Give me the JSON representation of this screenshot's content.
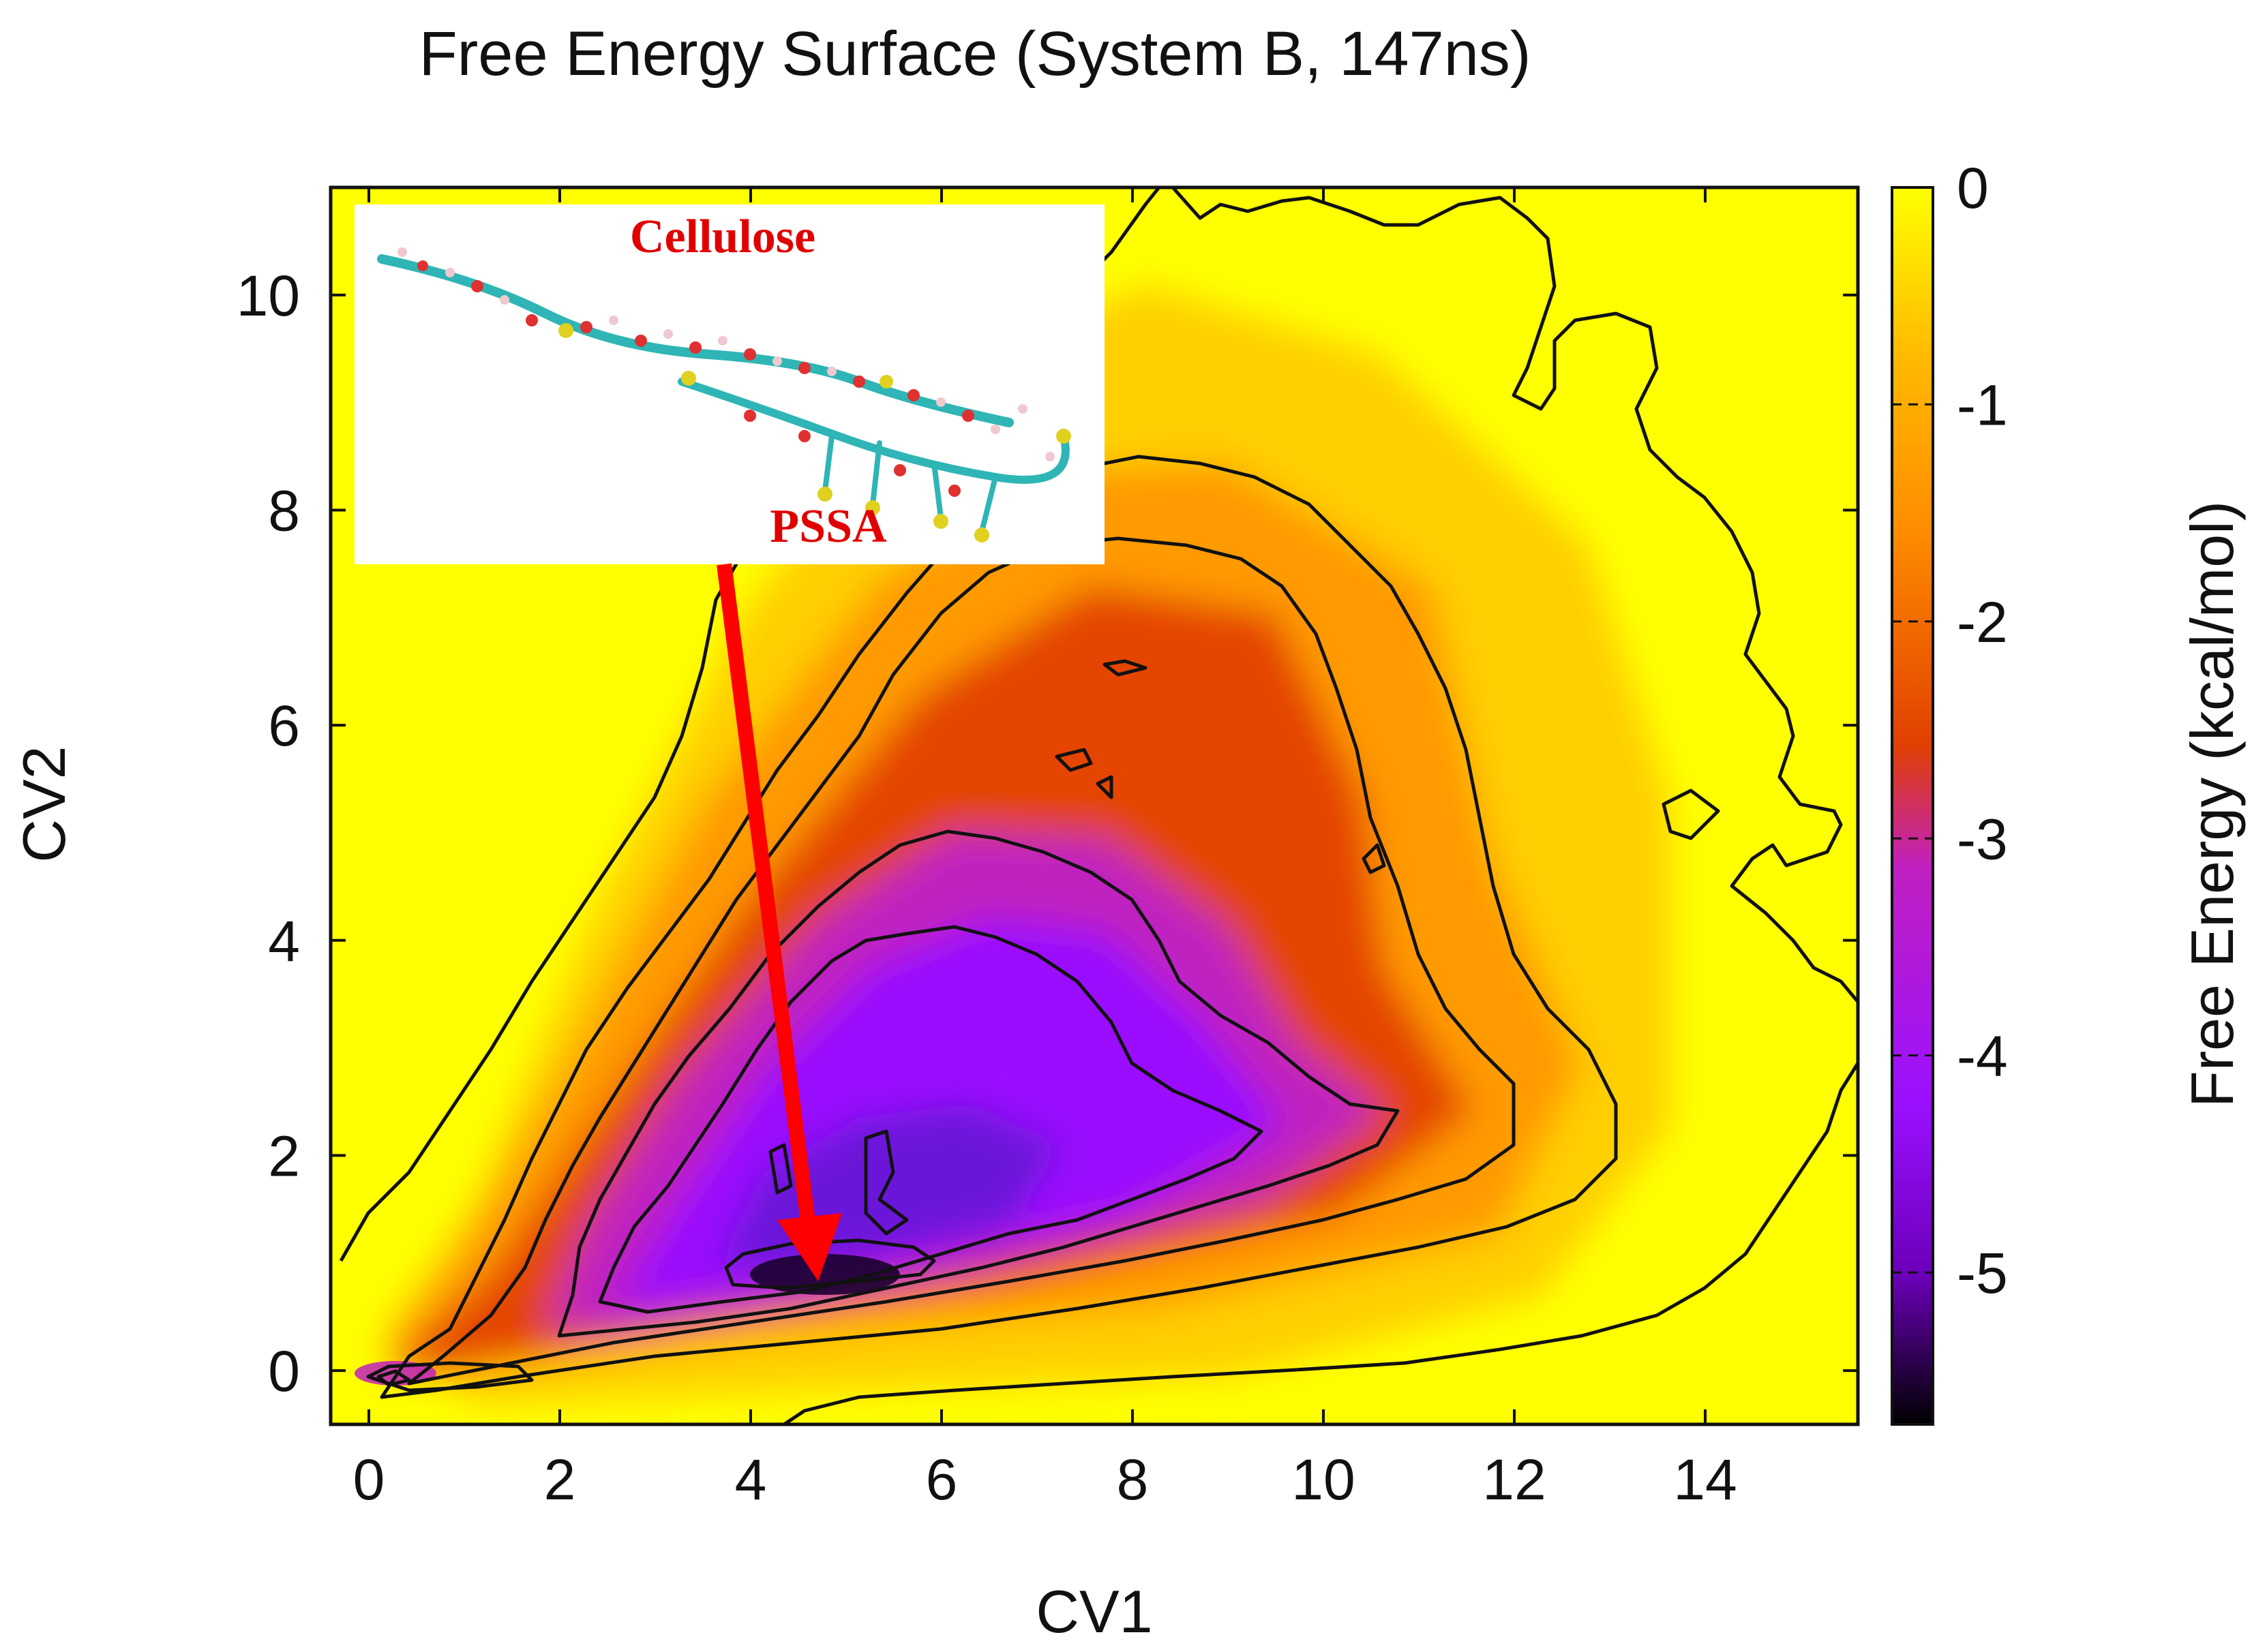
{
  "chart_data": {
    "type": "heatmap",
    "title": "Free Energy Surface (System B, 147ns)",
    "xlabel": "CV1",
    "ylabel": "CV2",
    "xlim": [
      -0.4,
      15.6
    ],
    "ylim": [
      -0.5,
      11.0
    ],
    "x_ticks": [
      0,
      2,
      4,
      6,
      8,
      10,
      12,
      14
    ],
    "y_ticks": [
      0,
      2,
      4,
      6,
      8,
      10
    ],
    "colorbar": {
      "label": "Free Energy (kcal/mol)",
      "range": [
        -5.7,
        0
      ],
      "ticks": [
        0,
        -1,
        -2,
        -3,
        -4,
        -5
      ],
      "colors": [
        "#000000",
        "#6b00b8",
        "#9a10ff",
        "#c020c0",
        "#e04000",
        "#ff8c00",
        "#ffb800",
        "#ffff00"
      ]
    },
    "contour_levels": [
      -5,
      -4,
      -3,
      -2,
      -1
    ],
    "minimum": {
      "x": 4.5,
      "y": 0.9,
      "value": -5.6
    },
    "annotations": {
      "inset_top_label": "Cellulose",
      "inset_bottom_label": "PSSA"
    },
    "arrow": {
      "from": [
        3.7,
        8.2
      ],
      "to": [
        4.7,
        0.95
      ],
      "color": "#ff0000"
    }
  }
}
